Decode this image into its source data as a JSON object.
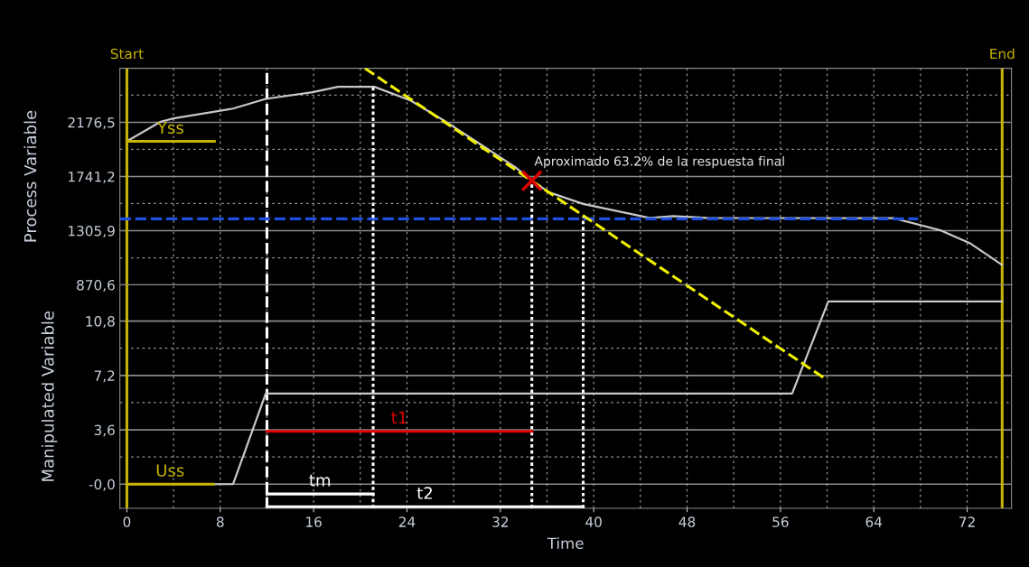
{
  "chart_data": [
    {
      "type": "line",
      "ylabel": "Process Variable",
      "xlim": [
        -0.6,
        75.8
      ],
      "xticks": [
        0,
        8,
        16,
        24,
        32,
        40,
        48,
        56,
        64,
        72
      ],
      "ylim": [
        870.6,
        2611.8
      ],
      "yticks": [
        {
          "value": 870.6,
          "label": "870,6"
        },
        {
          "value": 1305.9,
          "label": "1305,9"
        },
        {
          "value": 1741.2,
          "label": "1741,2"
        },
        {
          "value": 2176.5,
          "label": "2176,5"
        },
        {
          "value": 2611.8,
          "label": null
        }
      ],
      "tick_labels": "y",
      "grid": true,
      "series": [
        {
          "color": "#c8c8c8",
          "x": [
            0,
            2.9,
            4.0,
            9.1,
            11.9,
            15.9,
            18.1,
            21.2,
            24.3,
            27.1,
            29.9,
            33.3,
            34.7,
            36.2,
            39.1,
            44.8,
            46.8,
            49.7,
            65.7,
            69.7,
            72.3,
            75.0
          ],
          "values": [
            2024,
            2182,
            2208,
            2287,
            2365,
            2418,
            2462,
            2462,
            2352,
            2195,
            2024,
            1815,
            1707,
            1613,
            1521,
            1409,
            1423,
            1409,
            1407,
            1309,
            1202,
            1030
          ]
        },
        {
          "name": "Yss",
          "color": "#c8b400",
          "x": [
            0,
            7.5
          ],
          "values": [
            2024,
            2024
          ]
        },
        {
          "color": "#1f4fe0",
          "x": [
            -0.6,
            67.8
          ],
          "values": [
            1401,
            1401
          ],
          "line_style": "dashed"
        },
        {
          "color": "#f0f000",
          "x": [
            20.4,
            47.9
          ],
          "values": [
            2610,
            871
          ],
          "line_style": "dashed"
        },
        {
          "color": "#ffffff",
          "x": [
            21.1,
            21.1
          ],
          "values": [
            871,
            2462
          ],
          "line_style": "dotted"
        },
        {
          "color": "#ffffff",
          "x": [
            34.7,
            34.7
          ],
          "values": [
            871,
            1707
          ],
          "line_style": "dotted"
        },
        {
          "color": "#ffffff",
          "x": [
            39.1,
            39.1
          ],
          "values": [
            871,
            1415
          ],
          "line_style": "dotted"
        },
        {
          "type": "scatter",
          "color": "#e00000",
          "x": [
            34.7
          ],
          "values": [
            1707
          ],
          "marker": "cross"
        }
      ],
      "ref_lines": [
        {
          "axis": "x",
          "value": 0,
          "label": "Start",
          "color": "#c8b400"
        },
        {
          "axis": "x",
          "value": 75,
          "label": "End",
          "color": "#c8b400"
        },
        {
          "axis": "x",
          "value": 12,
          "color": "#ffffff",
          "line_style": "dashed"
        }
      ],
      "annotations": [
        {
          "text": "Aproximado 63.2% de la respuesta final",
          "x": 34.7,
          "y": 1707
        }
      ]
    },
    {
      "type": "line",
      "ylabel": "Manipulated Variable",
      "xlabel": "Time",
      "xlim": [
        -0.6,
        75.8
      ],
      "xticks": [
        0,
        8,
        16,
        24,
        32,
        40,
        48,
        56,
        64,
        72
      ],
      "ylim": [
        -1.6,
        13.2
      ],
      "yticks": [
        {
          "value": 0,
          "label": "-0,0"
        },
        {
          "value": 3.6,
          "label": "3,6"
        },
        {
          "value": 7.2,
          "label": "7,2"
        },
        {
          "value": 10.8,
          "label": "10,8"
        }
      ],
      "grid": true,
      "series": [
        {
          "color": "#c8c8c8",
          "x": [
            0,
            9.1,
            11.9,
            57.0,
            60.1,
            75.0
          ],
          "values": [
            0,
            0,
            6.0,
            6.0,
            12.1,
            12.1
          ]
        },
        {
          "name": "Uss",
          "color": "#c8b400",
          "x": [
            0,
            7.4
          ],
          "values": [
            0,
            0
          ]
        },
        {
          "color": "#f0f000",
          "x": [
            47.9,
            60.0
          ],
          "values": [
            13.2,
            6.9
          ],
          "line_style": "dashed"
        },
        {
          "name": "t1",
          "color": "#e00000",
          "x": [
            12,
            34.7
          ],
          "values": [
            3.5,
            3.5
          ]
        },
        {
          "name": "tm",
          "color": "#ffffff",
          "x": [
            12,
            21.1
          ],
          "values": [
            -0.65,
            -0.65
          ]
        },
        {
          "name": "t2",
          "color": "#ffffff",
          "x": [
            12,
            39.1
          ],
          "values": [
            -1.5,
            -1.5
          ]
        }
      ],
      "ref_lines": [
        {
          "axis": "x",
          "value": 0,
          "color": "#c8b400"
        },
        {
          "axis": "x",
          "value": 75,
          "color": "#c8b400"
        },
        {
          "axis": "x",
          "value": 12,
          "color": "#ffffff",
          "line_style": "dashed"
        },
        {
          "axis": "x",
          "value": 21.1,
          "color": "#ffffff",
          "line_style": "dotted"
        },
        {
          "axis": "x",
          "value": 34.7,
          "color": "#ffffff",
          "line_style": "dotted"
        },
        {
          "axis": "x",
          "value": 39.1,
          "color": "#ffffff",
          "line_style": "dotted"
        }
      ]
    }
  ]
}
